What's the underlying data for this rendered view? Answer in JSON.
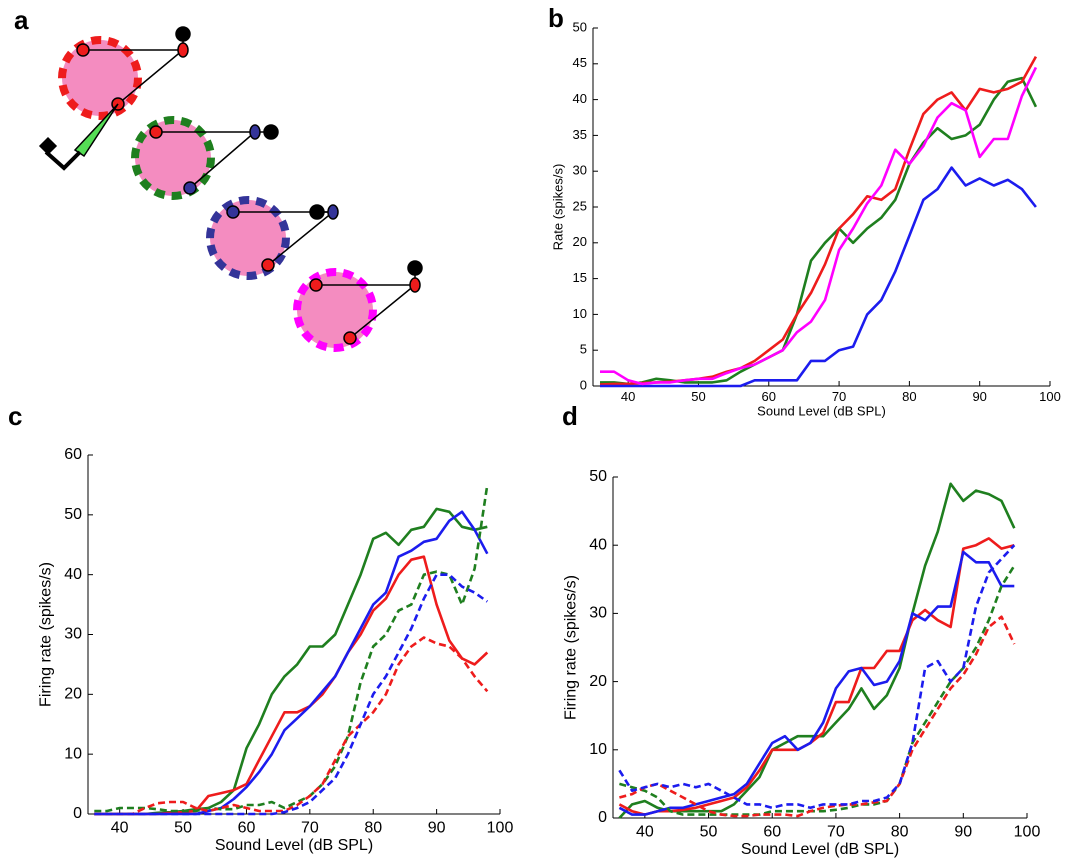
{
  "diagram": {
    "label": "a"
  },
  "chart_data": [
    {
      "type": "line",
      "label": "b",
      "ylabel": "Rate (spikes/s)",
      "xlabel": "Sound Level (dB SPL)",
      "xlim": [
        35,
        100
      ],
      "ylim": [
        0,
        50
      ],
      "xticks": [
        40,
        50,
        60,
        70,
        80,
        90,
        100
      ],
      "yticks": [
        0,
        5,
        10,
        15,
        20,
        25,
        30,
        35,
        40,
        45,
        50
      ],
      "x": [
        36,
        38,
        40,
        42,
        44,
        46,
        48,
        50,
        52,
        54,
        56,
        58,
        60,
        62,
        64,
        66,
        68,
        70,
        72,
        74,
        76,
        78,
        80,
        82,
        84,
        86,
        88,
        90,
        92,
        94,
        96,
        98
      ],
      "series": [
        {
          "color": "#1f7f1f",
          "dashed": false,
          "values": [
            0.5,
            0.5,
            0.3,
            0.5,
            1,
            0.8,
            0.5,
            0.5,
            0.5,
            0.8,
            2,
            3,
            4,
            5,
            10,
            17.5,
            20,
            22,
            20,
            22,
            23.5,
            26,
            31,
            34,
            36,
            34.5,
            35,
            36.5,
            40,
            42.5,
            43,
            39
          ]
        },
        {
          "color": "#ee1c1c",
          "dashed": false,
          "values": [
            0.2,
            0.3,
            0.3,
            0.4,
            0.5,
            0.6,
            0.8,
            1,
            1.3,
            2,
            2.5,
            3.5,
            5,
            6.5,
            10,
            13,
            17,
            22,
            24,
            26.5,
            26,
            27.5,
            33,
            38,
            40,
            41,
            38.5,
            41.5,
            41,
            41.5,
            42.5,
            46
          ]
        },
        {
          "color": "#1c1cee",
          "dashed": false,
          "values": [
            0,
            0,
            0,
            0,
            0,
            0,
            0,
            0,
            0,
            0,
            0,
            0.8,
            0.8,
            0.8,
            0.8,
            3.5,
            3.5,
            5,
            5.5,
            10,
            12,
            16,
            21,
            26,
            27.5,
            30.5,
            28,
            29,
            28,
            28.8,
            27.5,
            25
          ]
        },
        {
          "color": "#ff00ff",
          "dashed": false,
          "values": [
            2,
            2,
            0.8,
            0.3,
            0.5,
            0.5,
            0.8,
            1,
            1,
            1.8,
            2.5,
            3,
            4,
            5,
            7.5,
            9,
            12,
            19,
            22,
            25.5,
            28,
            33,
            31,
            33.5,
            37.5,
            39.5,
            38.5,
            32,
            34.5,
            34.5,
            40.5,
            44.5
          ]
        }
      ]
    },
    {
      "type": "line",
      "label": "c",
      "ylabel": "Firing rate (spikes/s)",
      "xlabel": "Sound Level (dB SPL)",
      "xlim": [
        35,
        100
      ],
      "ylim": [
        0,
        60
      ],
      "xticks": [
        40,
        50,
        60,
        70,
        80,
        90,
        100
      ],
      "yticks": [
        0,
        10,
        20,
        30,
        40,
        50,
        60
      ],
      "x": [
        36,
        38,
        40,
        42,
        44,
        46,
        48,
        50,
        52,
        54,
        56,
        58,
        60,
        62,
        64,
        66,
        68,
        70,
        72,
        74,
        76,
        78,
        80,
        82,
        84,
        86,
        88,
        90,
        92,
        94,
        96,
        98
      ],
      "series": [
        {
          "color": "#1f7f1f",
          "dashed": false,
          "values": [
            0,
            0,
            0,
            0,
            0,
            0.2,
            0.3,
            0.5,
            0.8,
            1,
            2,
            4,
            11,
            15,
            20,
            23,
            25,
            28,
            28,
            30,
            35,
            40,
            46,
            47,
            45,
            47.5,
            48,
            51,
            50.5,
            48,
            47.5,
            48
          ]
        },
        {
          "color": "#ee1c1c",
          "dashed": false,
          "values": [
            0,
            0,
            0,
            0,
            0,
            0,
            0.2,
            0.3,
            0.5,
            3,
            3.5,
            4,
            5,
            9,
            13,
            17,
            17,
            18,
            20,
            23,
            27,
            30,
            34,
            36,
            40,
            42.5,
            43,
            35,
            29,
            26,
            25,
            27
          ]
        },
        {
          "color": "#1c1cee",
          "dashed": false,
          "values": [
            0,
            0,
            0,
            0,
            0,
            0,
            0,
            0,
            0,
            0.5,
            1,
            2.5,
            4.5,
            7,
            10,
            14,
            16,
            18,
            20.5,
            23,
            27,
            31,
            35,
            37,
            43,
            44,
            45.5,
            46,
            49,
            50.5,
            47.5,
            43.5
          ]
        },
        {
          "color": "#1f7f1f",
          "dashed": true,
          "values": [
            0.5,
            0.5,
            1,
            1,
            1,
            0.8,
            0.5,
            0.5,
            0.5,
            1,
            0.8,
            0.8,
            1.5,
            1.5,
            2,
            1,
            2,
            3,
            5,
            8,
            13,
            22,
            28,
            30,
            34,
            35,
            40,
            40.5,
            40,
            35,
            41,
            55
          ]
        },
        {
          "color": "#ee1c1c",
          "dashed": true,
          "values": [
            0,
            0,
            0,
            0,
            1,
            1.8,
            2,
            2,
            1,
            0.5,
            1,
            1.5,
            1,
            0.5,
            0.5,
            0.5,
            1.5,
            3,
            5,
            9,
            13,
            15,
            17,
            20,
            25,
            28,
            29.5,
            28.5,
            28,
            26,
            23,
            20.5
          ]
        },
        {
          "color": "#1c1cee",
          "dashed": true,
          "values": [
            0,
            0,
            0,
            0,
            0,
            0,
            0,
            0,
            0,
            0,
            0,
            0,
            0,
            0,
            0,
            0.3,
            1,
            2,
            4,
            6,
            10,
            15,
            20,
            23,
            27,
            31,
            36,
            40,
            40,
            38,
            37,
            35.5
          ]
        }
      ]
    },
    {
      "type": "line",
      "label": "d",
      "ylabel": "Firing rate (spikes/s)",
      "xlabel": "Sound Level (dB SPL)",
      "xlim": [
        35,
        100
      ],
      "ylim": [
        0,
        50
      ],
      "xticks": [
        40,
        50,
        60,
        70,
        80,
        90,
        100
      ],
      "yticks": [
        0,
        10,
        20,
        30,
        40,
        50
      ],
      "x": [
        36,
        38,
        40,
        42,
        44,
        46,
        48,
        50,
        52,
        54,
        56,
        58,
        60,
        62,
        64,
        66,
        68,
        70,
        72,
        74,
        76,
        78,
        80,
        82,
        84,
        86,
        88,
        90,
        92,
        94,
        96,
        98
      ],
      "series": [
        {
          "color": "#1f7f1f",
          "dashed": false,
          "values": [
            0,
            2,
            2.5,
            1.5,
            1,
            1,
            1,
            1,
            1,
            2,
            4,
            6,
            10,
            11,
            12,
            12,
            12,
            14,
            16,
            19,
            16,
            18,
            22,
            30,
            37,
            42,
            49,
            46.5,
            48,
            47.5,
            46.5,
            42.5
          ]
        },
        {
          "color": "#ee1c1c",
          "dashed": false,
          "values": [
            2,
            1,
            0.5,
            1,
            1,
            1.2,
            1.5,
            2,
            2.5,
            3,
            4.5,
            7,
            10,
            10,
            10,
            11,
            12.5,
            17,
            17,
            22,
            22,
            24.5,
            24.5,
            29,
            30.5,
            29,
            28,
            39.5,
            40,
            41,
            39.5,
            40
          ]
        },
        {
          "color": "#1c1cee",
          "dashed": false,
          "values": [
            1.5,
            0.5,
            0.5,
            1,
            1.5,
            1.5,
            2,
            2.5,
            3,
            3.5,
            5,
            8,
            11,
            12,
            10,
            11,
            14,
            19,
            21.5,
            22,
            19.5,
            20,
            23,
            30,
            29,
            31,
            31,
            39,
            37.5,
            37.5,
            34,
            34
          ]
        },
        {
          "color": "#1f7f1f",
          "dashed": true,
          "values": [
            5,
            4.5,
            4,
            3,
            1,
            0.5,
            0.5,
            0.5,
            0.5,
            0.5,
            0.5,
            0.5,
            1,
            1,
            1,
            1,
            1,
            1.2,
            1.5,
            2,
            2,
            2.5,
            5,
            11,
            14,
            17,
            20,
            22,
            25,
            29,
            34,
            37
          ]
        },
        {
          "color": "#ee1c1c",
          "dashed": true,
          "values": [
            3,
            3.5,
            4.5,
            5,
            4,
            3,
            2,
            1,
            0.5,
            0.3,
            0.3,
            0.5,
            0.5,
            0.5,
            0.3,
            1,
            1.5,
            1.8,
            2,
            2,
            2.3,
            2.5,
            5,
            10,
            13,
            16,
            19,
            21,
            24,
            28,
            29.5,
            25.5
          ]
        },
        {
          "color": "#1c1cee",
          "dashed": true,
          "values": [
            7,
            4,
            4.5,
            5,
            4.5,
            5,
            4.5,
            5,
            4,
            3,
            2,
            2,
            1.5,
            2,
            2,
            1.5,
            2,
            2,
            2,
            2.5,
            2.5,
            3,
            5,
            11,
            22,
            23,
            20,
            22,
            31,
            36,
            38,
            40
          ]
        }
      ]
    }
  ]
}
